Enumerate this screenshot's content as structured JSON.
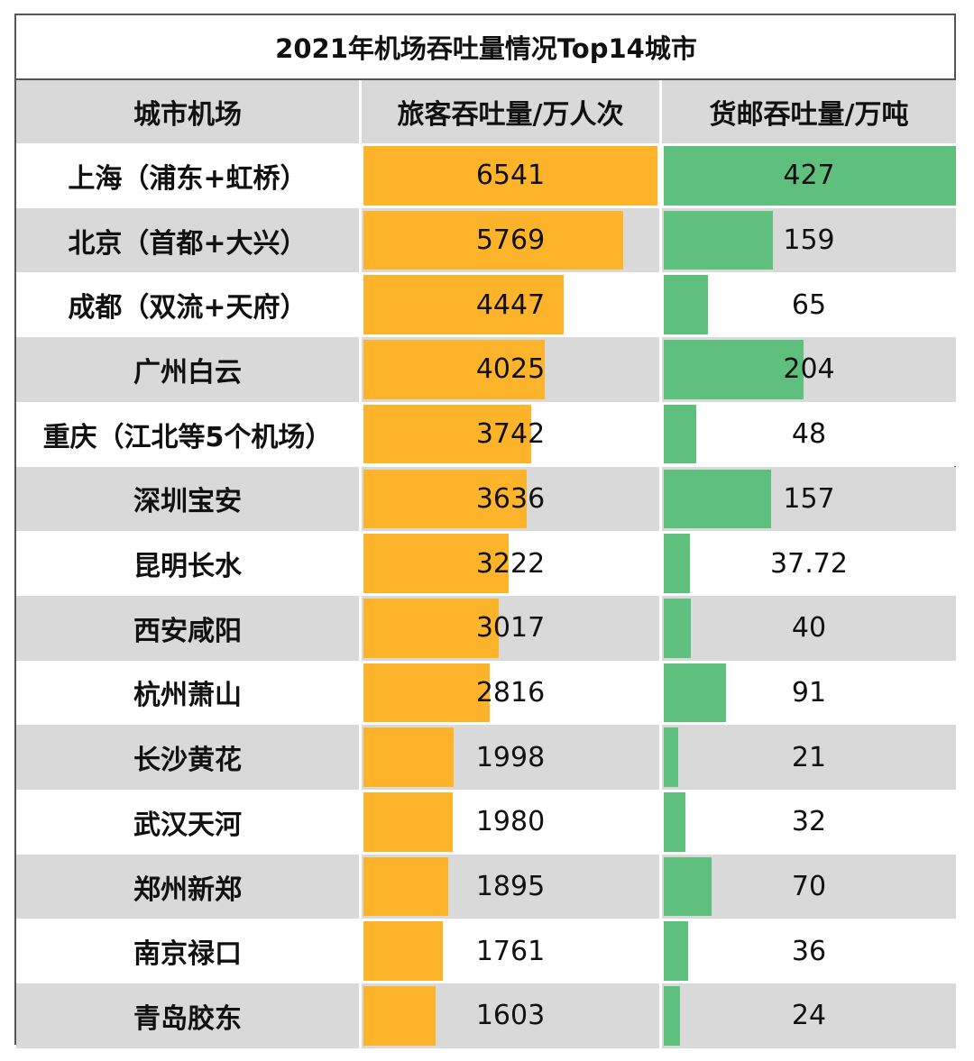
{
  "title": "2021年机场吞吐量情况Top14城市",
  "colors": {
    "passenger_bar": "#fdb42b",
    "cargo_bar": "#5fc07e",
    "stripe": "#d9d9d9"
  },
  "headers": {
    "city": "城市机场",
    "passenger": "旅客吞吐量/万人次",
    "cargo": "货邮吞吐量/万吨"
  },
  "chart_data": {
    "type": "table",
    "title": "2021年机场吞吐量情况Top14城市",
    "columns": [
      "城市机场",
      "旅客吞吐量/万人次",
      "货邮吞吐量/万吨"
    ],
    "categories": [
      "上海（浦东+虹桥）",
      "北京（首都+大兴）",
      "成都（双流+天府）",
      "广州白云",
      "重庆（江北等5个机场）",
      "深圳宝安",
      "昆明长水",
      "西安咸阳",
      "杭州萧山",
      "长沙黄花",
      "武汉天河",
      "郑州新郑",
      "南京禄口",
      "青岛胶东"
    ],
    "series": [
      {
        "name": "旅客吞吐量/万人次",
        "values": [
          6541,
          5769,
          4447,
          4025,
          3742,
          3636,
          3222,
          3017,
          2816,
          1998,
          1980,
          1895,
          1761,
          1603
        ]
      },
      {
        "name": "货邮吞吐量/万吨",
        "values": [
          427,
          159,
          65,
          204,
          48,
          157,
          37.72,
          40,
          91,
          21,
          32,
          70,
          36,
          24
        ]
      }
    ],
    "rows": [
      {
        "city": "上海（浦东+虹桥）",
        "passenger": "6541",
        "cargo": "427"
      },
      {
        "city": "北京（首都+大兴）",
        "passenger": "5769",
        "cargo": "159"
      },
      {
        "city": "成都（双流+天府）",
        "passenger": "4447",
        "cargo": "65"
      },
      {
        "city": "广州白云",
        "passenger": "4025",
        "cargo": "204"
      },
      {
        "city": "重庆（江北等5个机场）",
        "passenger": "3742",
        "cargo": "48"
      },
      {
        "city": "深圳宝安",
        "passenger": "3636",
        "cargo": "157"
      },
      {
        "city": "昆明长水",
        "passenger": "3222",
        "cargo": "37.72"
      },
      {
        "city": "西安咸阳",
        "passenger": "3017",
        "cargo": "40"
      },
      {
        "city": "杭州萧山",
        "passenger": "2816",
        "cargo": "91"
      },
      {
        "city": "长沙黄花",
        "passenger": "1998",
        "cargo": "21"
      },
      {
        "city": "武汉天河",
        "passenger": "1980",
        "cargo": "32"
      },
      {
        "city": "郑州新郑",
        "passenger": "1895",
        "cargo": "70"
      },
      {
        "city": "南京禄口",
        "passenger": "1761",
        "cargo": "36"
      },
      {
        "city": "青岛胶东",
        "passenger": "1603",
        "cargo": "24"
      }
    ]
  }
}
